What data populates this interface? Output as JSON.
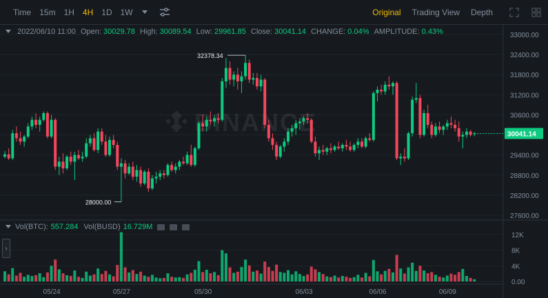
{
  "toolbar": {
    "intervals": [
      "Time",
      "15m",
      "1H",
      "4H",
      "1D",
      "1W"
    ],
    "active_interval": "4H",
    "views": [
      "Original",
      "Trading View",
      "Depth"
    ],
    "active_view": "Original"
  },
  "info": {
    "datetime": "2022/06/10 11:00",
    "open_label": "Open:",
    "open": "30029.78",
    "high_label": "High:",
    "high": "30089.54",
    "low_label": "Low:",
    "low": "29961.85",
    "close_label": "Close:",
    "close": "30041.14",
    "change_label": "CHANGE:",
    "change": "0.04%",
    "amplitude_label": "AMPLITUDE:",
    "amplitude": "0.43%"
  },
  "volume": {
    "btc_label": "Vol(BTC):",
    "btc": "557.284",
    "busd_label": "Vol(BUSD)",
    "busd": "16.729M"
  },
  "watermark": "BINANCE",
  "colors": {
    "up": "#0ecb81",
    "down": "#f6465d",
    "accent": "#f0b90b",
    "bg": "#161a1e"
  },
  "chart_data": {
    "type": "candlestick",
    "price_axis": [
      "33000.00",
      "32400.00",
      "31800.00",
      "31200.00",
      "30600.00",
      "30000.00",
      "29400.00",
      "28800.00",
      "28200.00",
      "27600.00"
    ],
    "price_ylim": [
      27600,
      33000
    ],
    "volume_axis": [
      "12K",
      "8K",
      "4K",
      "0.00"
    ],
    "volume_ylim": [
      0,
      12000
    ],
    "x_labels": [
      "05/24",
      "05/27",
      "05/30",
      "06/03",
      "06/06",
      "06/09"
    ],
    "current_price": "30041.14",
    "high_marker": "32378.34",
    "low_marker": "28000.00",
    "candles": [
      {
        "o": 29350,
        "h": 29520,
        "l": 29300,
        "c": 29420,
        "v": 2600
      },
      {
        "o": 29420,
        "h": 29600,
        "l": 29250,
        "c": 29300,
        "v": 1800
      },
      {
        "o": 29300,
        "h": 30150,
        "l": 29250,
        "c": 30050,
        "v": 3400
      },
      {
        "o": 30050,
        "h": 30250,
        "l": 29800,
        "c": 29900,
        "v": 1500
      },
      {
        "o": 29900,
        "h": 30100,
        "l": 29700,
        "c": 29800,
        "v": 2200
      },
      {
        "o": 29800,
        "h": 30000,
        "l": 29650,
        "c": 29950,
        "v": 1200
      },
      {
        "o": 29950,
        "h": 30350,
        "l": 29900,
        "c": 30250,
        "v": 1700
      },
      {
        "o": 30250,
        "h": 30550,
        "l": 30150,
        "c": 30450,
        "v": 1400
      },
      {
        "o": 30450,
        "h": 30650,
        "l": 30200,
        "c": 30300,
        "v": 1600
      },
      {
        "o": 30300,
        "h": 30550,
        "l": 30100,
        "c": 30450,
        "v": 2100
      },
      {
        "o": 30450,
        "h": 30700,
        "l": 30400,
        "c": 30650,
        "v": 1100
      },
      {
        "o": 30650,
        "h": 30700,
        "l": 29900,
        "c": 29950,
        "v": 2300
      },
      {
        "o": 29950,
        "h": 30600,
        "l": 29900,
        "c": 30450,
        "v": 4000
      },
      {
        "o": 30450,
        "h": 30500,
        "l": 28950,
        "c": 29050,
        "v": 5600
      },
      {
        "o": 29050,
        "h": 29350,
        "l": 28800,
        "c": 29200,
        "v": 3100
      },
      {
        "o": 29200,
        "h": 29450,
        "l": 28850,
        "c": 29000,
        "v": 2100
      },
      {
        "o": 29000,
        "h": 29400,
        "l": 28950,
        "c": 29350,
        "v": 1600
      },
      {
        "o": 29350,
        "h": 29500,
        "l": 29100,
        "c": 29200,
        "v": 1400
      },
      {
        "o": 29200,
        "h": 29500,
        "l": 28650,
        "c": 29400,
        "v": 2800
      },
      {
        "o": 29400,
        "h": 29550,
        "l": 29250,
        "c": 29300,
        "v": 1200
      },
      {
        "o": 29300,
        "h": 29500,
        "l": 29200,
        "c": 29350,
        "v": 900
      },
      {
        "o": 29350,
        "h": 29900,
        "l": 29300,
        "c": 29750,
        "v": 2500
      },
      {
        "o": 29750,
        "h": 30000,
        "l": 29650,
        "c": 29900,
        "v": 1500
      },
      {
        "o": 29900,
        "h": 30050,
        "l": 29500,
        "c": 29550,
        "v": 1800
      },
      {
        "o": 29550,
        "h": 30200,
        "l": 29450,
        "c": 30100,
        "v": 3300
      },
      {
        "o": 30100,
        "h": 30200,
        "l": 29700,
        "c": 29800,
        "v": 1900
      },
      {
        "o": 29800,
        "h": 30000,
        "l": 29350,
        "c": 29400,
        "v": 2700
      },
      {
        "o": 29400,
        "h": 29950,
        "l": 29350,
        "c": 29850,
        "v": 1800
      },
      {
        "o": 29850,
        "h": 30000,
        "l": 29600,
        "c": 29700,
        "v": 1300
      },
      {
        "o": 29700,
        "h": 29800,
        "l": 28950,
        "c": 29050,
        "v": 4200
      },
      {
        "o": 29050,
        "h": 29300,
        "l": 28000,
        "c": 29150,
        "v": 12600
      },
      {
        "o": 29150,
        "h": 29250,
        "l": 28700,
        "c": 28850,
        "v": 3600
      },
      {
        "o": 28850,
        "h": 29150,
        "l": 28800,
        "c": 29050,
        "v": 2300
      },
      {
        "o": 29050,
        "h": 29200,
        "l": 28650,
        "c": 28750,
        "v": 2900
      },
      {
        "o": 28750,
        "h": 29100,
        "l": 28600,
        "c": 28950,
        "v": 1900
      },
      {
        "o": 28950,
        "h": 29050,
        "l": 28450,
        "c": 28550,
        "v": 2500
      },
      {
        "o": 28550,
        "h": 28950,
        "l": 28500,
        "c": 28900,
        "v": 1500
      },
      {
        "o": 28900,
        "h": 29000,
        "l": 28300,
        "c": 28400,
        "v": 1200
      },
      {
        "o": 28400,
        "h": 28800,
        "l": 28350,
        "c": 28700,
        "v": 1700
      },
      {
        "o": 28700,
        "h": 28900,
        "l": 28550,
        "c": 28750,
        "v": 1000
      },
      {
        "o": 28750,
        "h": 28950,
        "l": 28650,
        "c": 28850,
        "v": 800
      },
      {
        "o": 28850,
        "h": 28950,
        "l": 28700,
        "c": 28800,
        "v": 900
      },
      {
        "o": 28800,
        "h": 29150,
        "l": 28750,
        "c": 29100,
        "v": 2100
      },
      {
        "o": 29100,
        "h": 29200,
        "l": 28900,
        "c": 28950,
        "v": 1200
      },
      {
        "o": 28950,
        "h": 29150,
        "l": 28850,
        "c": 29050,
        "v": 1000
      },
      {
        "o": 29050,
        "h": 29250,
        "l": 28950,
        "c": 29200,
        "v": 1100
      },
      {
        "o": 29200,
        "h": 29350,
        "l": 29100,
        "c": 29150,
        "v": 900
      },
      {
        "o": 29150,
        "h": 29500,
        "l": 29100,
        "c": 29400,
        "v": 1800
      },
      {
        "o": 29400,
        "h": 29700,
        "l": 29050,
        "c": 29100,
        "v": 2200
      },
      {
        "o": 29100,
        "h": 29650,
        "l": 29050,
        "c": 29600,
        "v": 3000
      },
      {
        "o": 29600,
        "h": 30400,
        "l": 29550,
        "c": 30350,
        "v": 5200
      },
      {
        "o": 30350,
        "h": 30600,
        "l": 30100,
        "c": 30250,
        "v": 2400
      },
      {
        "o": 30250,
        "h": 30550,
        "l": 30100,
        "c": 30450,
        "v": 3000
      },
      {
        "o": 30450,
        "h": 30700,
        "l": 30300,
        "c": 30400,
        "v": 2100
      },
      {
        "o": 30400,
        "h": 30600,
        "l": 30250,
        "c": 30500,
        "v": 2400
      },
      {
        "o": 30500,
        "h": 30650,
        "l": 30350,
        "c": 30450,
        "v": 1600
      },
      {
        "o": 30450,
        "h": 31700,
        "l": 30400,
        "c": 31600,
        "v": 8000
      },
      {
        "o": 31600,
        "h": 32300,
        "l": 31400,
        "c": 32000,
        "v": 7200
      },
      {
        "o": 32000,
        "h": 32200,
        "l": 31500,
        "c": 31650,
        "v": 3600
      },
      {
        "o": 31650,
        "h": 31900,
        "l": 31450,
        "c": 31800,
        "v": 2200
      },
      {
        "o": 31800,
        "h": 32000,
        "l": 31350,
        "c": 31600,
        "v": 2500
      },
      {
        "o": 31600,
        "h": 31900,
        "l": 31250,
        "c": 31750,
        "v": 3700
      },
      {
        "o": 31750,
        "h": 32378,
        "l": 31650,
        "c": 32150,
        "v": 5600
      },
      {
        "o": 32150,
        "h": 32250,
        "l": 31550,
        "c": 31650,
        "v": 4100
      },
      {
        "o": 31650,
        "h": 31850,
        "l": 31500,
        "c": 31700,
        "v": 2500
      },
      {
        "o": 31700,
        "h": 31850,
        "l": 31350,
        "c": 31450,
        "v": 2800
      },
      {
        "o": 31450,
        "h": 31800,
        "l": 31300,
        "c": 31650,
        "v": 2000
      },
      {
        "o": 31650,
        "h": 31700,
        "l": 30200,
        "c": 30300,
        "v": 5100
      },
      {
        "o": 30300,
        "h": 30450,
        "l": 29800,
        "c": 29900,
        "v": 3700
      },
      {
        "o": 29900,
        "h": 30050,
        "l": 29550,
        "c": 29700,
        "v": 2700
      },
      {
        "o": 29700,
        "h": 29800,
        "l": 29250,
        "c": 29350,
        "v": 4300
      },
      {
        "o": 29350,
        "h": 29700,
        "l": 29300,
        "c": 29650,
        "v": 2400
      },
      {
        "o": 29650,
        "h": 29900,
        "l": 29500,
        "c": 29800,
        "v": 2200
      },
      {
        "o": 29800,
        "h": 30200,
        "l": 29700,
        "c": 30100,
        "v": 2900
      },
      {
        "o": 30100,
        "h": 30300,
        "l": 29950,
        "c": 30200,
        "v": 1800
      },
      {
        "o": 30200,
        "h": 30450,
        "l": 30000,
        "c": 30350,
        "v": 2600
      },
      {
        "o": 30350,
        "h": 30500,
        "l": 30150,
        "c": 30400,
        "v": 1900
      },
      {
        "o": 30400,
        "h": 30550,
        "l": 30300,
        "c": 30500,
        "v": 1400
      },
      {
        "o": 30500,
        "h": 30650,
        "l": 30350,
        "c": 30450,
        "v": 1800
      },
      {
        "o": 30450,
        "h": 30500,
        "l": 29750,
        "c": 29800,
        "v": 3800
      },
      {
        "o": 29800,
        "h": 29950,
        "l": 29350,
        "c": 29450,
        "v": 3100
      },
      {
        "o": 29450,
        "h": 29650,
        "l": 29250,
        "c": 29550,
        "v": 2400
      },
      {
        "o": 29550,
        "h": 29700,
        "l": 29400,
        "c": 29500,
        "v": 1900
      },
      {
        "o": 29500,
        "h": 29650,
        "l": 29400,
        "c": 29600,
        "v": 1300
      },
      {
        "o": 29600,
        "h": 29750,
        "l": 29450,
        "c": 29550,
        "v": 1100
      },
      {
        "o": 29550,
        "h": 29700,
        "l": 29500,
        "c": 29650,
        "v": 1500
      },
      {
        "o": 29650,
        "h": 29800,
        "l": 29550,
        "c": 29600,
        "v": 1000
      },
      {
        "o": 29600,
        "h": 29750,
        "l": 29500,
        "c": 29700,
        "v": 1400
      },
      {
        "o": 29700,
        "h": 29850,
        "l": 29550,
        "c": 29650,
        "v": 1200
      },
      {
        "o": 29650,
        "h": 29800,
        "l": 29500,
        "c": 29550,
        "v": 900
      },
      {
        "o": 29550,
        "h": 29750,
        "l": 29500,
        "c": 29700,
        "v": 1100
      },
      {
        "o": 29700,
        "h": 29900,
        "l": 29600,
        "c": 29800,
        "v": 1700
      },
      {
        "o": 29800,
        "h": 29900,
        "l": 29600,
        "c": 29650,
        "v": 1000
      },
      {
        "o": 29650,
        "h": 29950,
        "l": 29600,
        "c": 29900,
        "v": 2200
      },
      {
        "o": 29900,
        "h": 30050,
        "l": 29800,
        "c": 29850,
        "v": 1300
      },
      {
        "o": 29850,
        "h": 31300,
        "l": 29800,
        "c": 31250,
        "v": 5500
      },
      {
        "o": 31250,
        "h": 31450,
        "l": 31000,
        "c": 31350,
        "v": 2600
      },
      {
        "o": 31350,
        "h": 31500,
        "l": 31200,
        "c": 31300,
        "v": 1800
      },
      {
        "o": 31300,
        "h": 31600,
        "l": 31200,
        "c": 31500,
        "v": 2700
      },
      {
        "o": 31500,
        "h": 31750,
        "l": 31350,
        "c": 31450,
        "v": 3200
      },
      {
        "o": 31450,
        "h": 31600,
        "l": 31200,
        "c": 31550,
        "v": 2300
      },
      {
        "o": 31550,
        "h": 31600,
        "l": 29250,
        "c": 29300,
        "v": 6800
      },
      {
        "o": 29300,
        "h": 29450,
        "l": 29100,
        "c": 29350,
        "v": 3300
      },
      {
        "o": 29350,
        "h": 29600,
        "l": 29200,
        "c": 29300,
        "v": 2000
      },
      {
        "o": 29300,
        "h": 30100,
        "l": 29250,
        "c": 30050,
        "v": 3600
      },
      {
        "o": 30050,
        "h": 31150,
        "l": 29950,
        "c": 31050,
        "v": 4800
      },
      {
        "o": 31050,
        "h": 31550,
        "l": 30950,
        "c": 31100,
        "v": 2700
      },
      {
        "o": 31100,
        "h": 31200,
        "l": 29900,
        "c": 30000,
        "v": 4000
      },
      {
        "o": 30000,
        "h": 30750,
        "l": 29950,
        "c": 30650,
        "v": 2800
      },
      {
        "o": 30650,
        "h": 30900,
        "l": 30200,
        "c": 30300,
        "v": 2100
      },
      {
        "o": 30300,
        "h": 30400,
        "l": 29900,
        "c": 30000,
        "v": 2400
      },
      {
        "o": 30000,
        "h": 30350,
        "l": 29950,
        "c": 30250,
        "v": 1700
      },
      {
        "o": 30250,
        "h": 30400,
        "l": 30050,
        "c": 30150,
        "v": 1200
      },
      {
        "o": 30150,
        "h": 30300,
        "l": 30000,
        "c": 30250,
        "v": 1000
      },
      {
        "o": 30250,
        "h": 30450,
        "l": 30150,
        "c": 30350,
        "v": 1500
      },
      {
        "o": 30350,
        "h": 30550,
        "l": 30200,
        "c": 30300,
        "v": 2000
      },
      {
        "o": 30300,
        "h": 30450,
        "l": 30100,
        "c": 30200,
        "v": 1700
      },
      {
        "o": 30200,
        "h": 30400,
        "l": 29800,
        "c": 29950,
        "v": 2400
      },
      {
        "o": 29950,
        "h": 30100,
        "l": 29600,
        "c": 30000,
        "v": 3200
      },
      {
        "o": 30000,
        "h": 30200,
        "l": 29900,
        "c": 30100,
        "v": 1400
      },
      {
        "o": 30100,
        "h": 30150,
        "l": 29950,
        "c": 30000,
        "v": 900
      },
      {
        "o": 30029.78,
        "h": 30089.54,
        "l": 29961.85,
        "c": 30041.14,
        "v": 557
      }
    ]
  }
}
